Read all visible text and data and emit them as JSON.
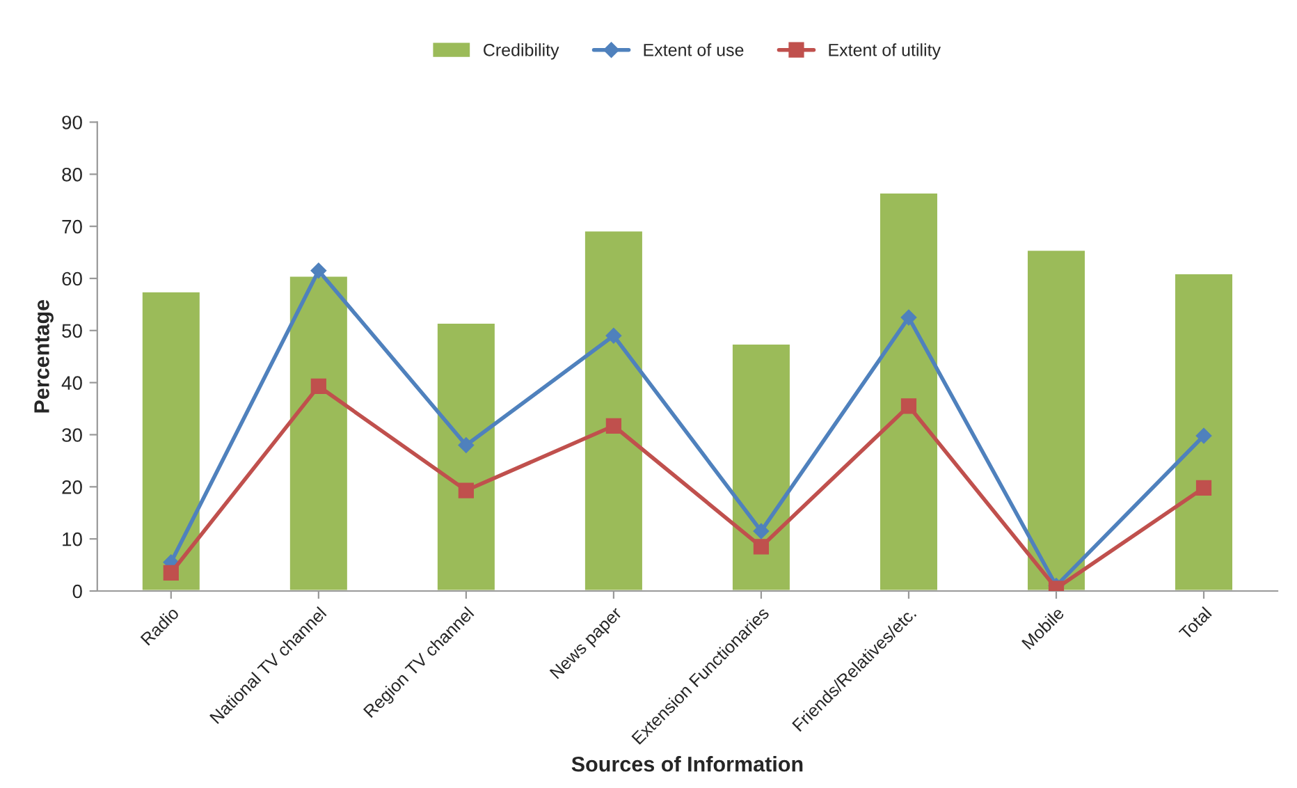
{
  "chart_data": {
    "type": "bar",
    "xlabel": "Sources of Information",
    "ylabel": "Percentage",
    "categories": [
      "Radio",
      "National TV channel",
      "Region TV channel",
      "News paper",
      "Extension Functionaries",
      "Friends/Relatives/etc.",
      "Mobile",
      "Total"
    ],
    "series": [
      {
        "name": "Credibility",
        "color": "#9bbb59",
        "values": [
          57.5,
          60.5,
          51.5,
          69.2,
          47.5,
          76.5,
          65.5,
          61
        ]
      },
      {
        "name": "Extent of use",
        "type": "line",
        "color": "#4f81bd",
        "marker": "diamond",
        "values": [
          5.5,
          61.5,
          28,
          49,
          11.5,
          52.5,
          1,
          29.8
        ]
      },
      {
        "name": "Extent of utility",
        "type": "line",
        "color": "#c0504d",
        "marker": "square",
        "values": [
          3.5,
          39.3,
          19.3,
          31.7,
          8.5,
          35.5,
          0.5,
          19.8
        ]
      }
    ],
    "ylim": [
      0,
      90
    ],
    "yticks": [
      0,
      10,
      20,
      30,
      40,
      50,
      60,
      70,
      80,
      90
    ],
    "grid": false,
    "legend": "top"
  }
}
